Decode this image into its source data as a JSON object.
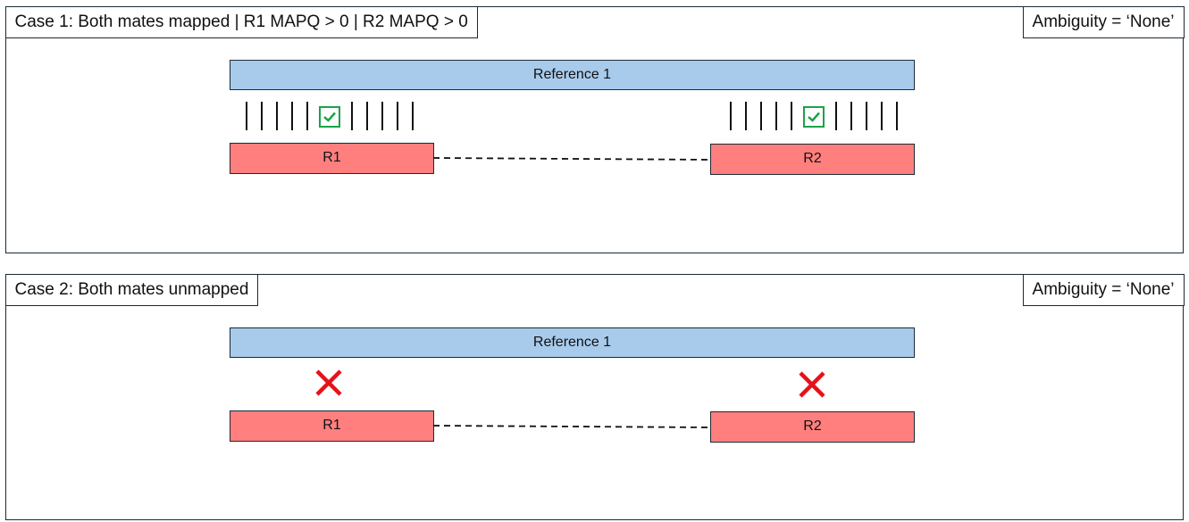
{
  "case1": {
    "title": "Case 1: Both mates mapped | R1 MAPQ > 0 | R2 MAPQ > 0",
    "ambiguity": "Ambiguity = ‘None’",
    "reference_label": "Reference 1",
    "read1_label": "R1",
    "read2_label": "R2",
    "read1_status_icon": "check-icon",
    "read2_status_icon": "check-icon"
  },
  "case2": {
    "title": "Case 2: Both mates unmapped",
    "ambiguity": "Ambiguity = ‘None’",
    "reference_label": "Reference 1",
    "read1_label": "R1",
    "read2_label": "R2",
    "read1_status_icon": "cross-icon",
    "read2_status_icon": "cross-icon"
  },
  "colors": {
    "reference": "#a8cbec",
    "read": "#ff7f7f",
    "check": "#1aa34a",
    "cross": "#e5121a",
    "border": "#1c2a33"
  }
}
